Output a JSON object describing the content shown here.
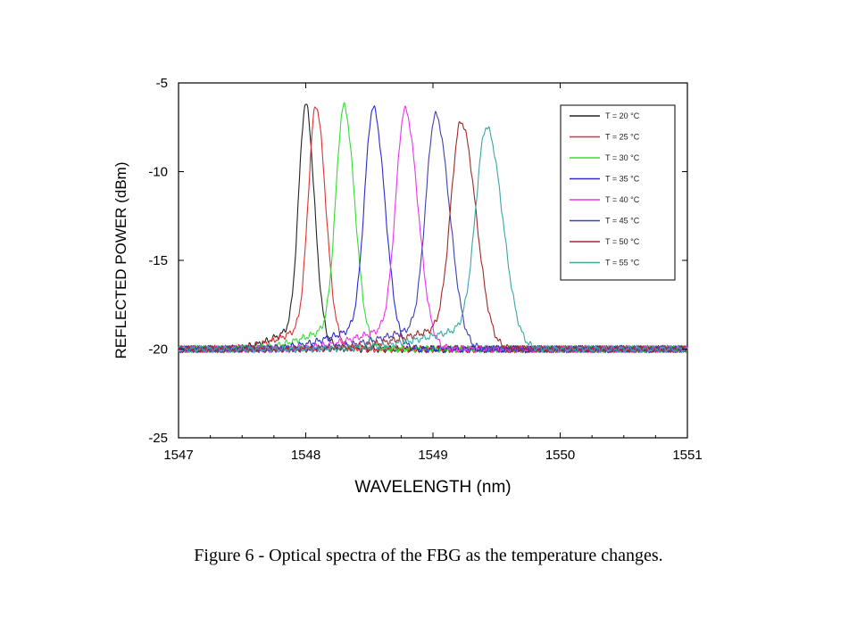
{
  "chart_data": {
    "type": "line",
    "title": "",
    "xlabel": "WAVELENGTH (nm)",
    "ylabel": "REFLECTED POWER (dBm)",
    "xlim": [
      1547,
      1551
    ],
    "ylim": [
      -25,
      -5
    ],
    "xticks": [
      "1547",
      "1548",
      "1549",
      "1550",
      "1551"
    ],
    "yticks": [
      "-5",
      "-10",
      "-15",
      "-20",
      "-25"
    ],
    "grid": false,
    "legend_position": "top-right",
    "noise_floor": -20,
    "series": [
      {
        "name": "T = 20 °C",
        "color": "#222222",
        "peak_wavelength": 1548.0,
        "peak_power": -6.2
      },
      {
        "name": "T = 25 °C",
        "color": "#e03030",
        "peak_wavelength": 1548.08,
        "peak_power": -6.3
      },
      {
        "name": "T = 30 °C",
        "color": "#33dd33",
        "peak_wavelength": 1548.3,
        "peak_power": -6.3
      },
      {
        "name": "T = 35 °C",
        "color": "#2a2ad0",
        "peak_wavelength": 1548.53,
        "peak_power": -6.4
      },
      {
        "name": "T = 40 °C",
        "color": "#ee33ee",
        "peak_wavelength": 1548.78,
        "peak_power": -6.5
      },
      {
        "name": "T = 45 °C",
        "color": "#4040b0",
        "peak_wavelength": 1549.02,
        "peak_power": -6.8
      },
      {
        "name": "T = 50 °C",
        "color": "#a02828",
        "peak_wavelength": 1549.22,
        "peak_power": -7.2
      },
      {
        "name": "T = 55 °C",
        "color": "#3aa6a6",
        "peak_wavelength": 1549.42,
        "peak_power": -7.5
      }
    ]
  },
  "caption": "Figure 6 - Optical spectra of the FBG as the temperature changes."
}
